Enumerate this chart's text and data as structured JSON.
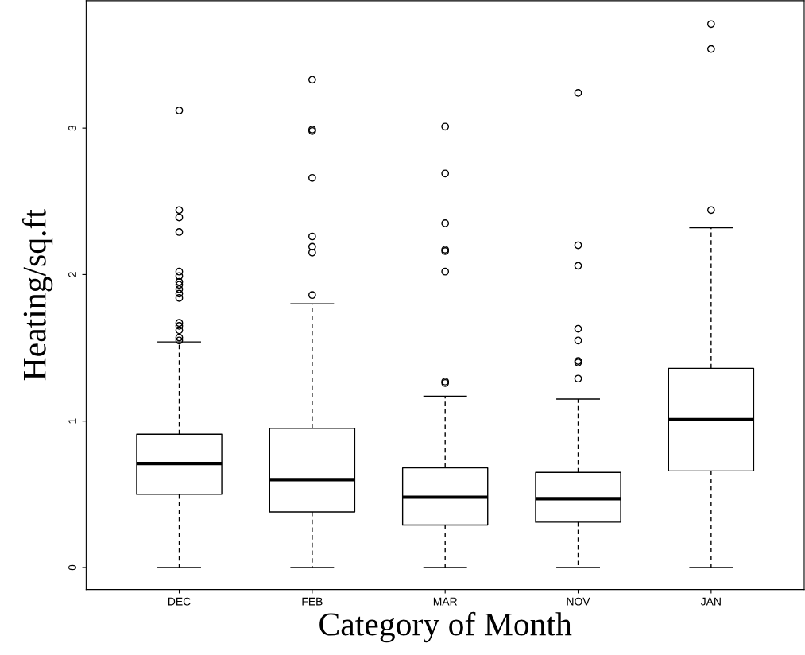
{
  "chart_data": {
    "type": "box",
    "xlabel": "Category of Month",
    "ylabel": "Heating/sq.ft",
    "categories": [
      "DEC",
      "FEB",
      "MAR",
      "NOV",
      "JAN"
    ],
    "ylim": [
      -0.15,
      3.87
    ],
    "yticks": [
      0,
      1,
      2,
      3
    ],
    "grid": false,
    "color": "#000000",
    "boxes": [
      {
        "low": 0,
        "q1": 0.5,
        "median": 0.71,
        "q3": 0.91,
        "high": 1.54,
        "outliers": [
          3.12,
          2.44,
          2.39,
          2.29,
          2.02,
          1.99,
          1.95,
          1.93,
          1.9,
          1.87,
          1.84,
          1.67,
          1.65,
          1.62,
          1.57,
          1.55
        ]
      },
      {
        "low": 0,
        "q1": 0.38,
        "median": 0.6,
        "q3": 0.95,
        "high": 1.8,
        "outliers": [
          3.33,
          2.99,
          2.98,
          2.66,
          2.26,
          2.19,
          2.15,
          1.86
        ]
      },
      {
        "low": 0,
        "q1": 0.29,
        "median": 0.48,
        "q3": 0.68,
        "high": 1.17,
        "outliers": [
          3.01,
          2.69,
          2.35,
          2.17,
          2.16,
          2.02,
          1.27,
          1.26
        ]
      },
      {
        "low": 0,
        "q1": 0.31,
        "median": 0.47,
        "q3": 0.65,
        "high": 1.15,
        "outliers": [
          3.24,
          2.2,
          2.06,
          1.63,
          1.55,
          1.41,
          1.4,
          1.29
        ]
      },
      {
        "low": 0,
        "q1": 0.66,
        "median": 1.01,
        "q3": 1.36,
        "high": 2.32,
        "outliers": [
          3.71,
          3.54,
          2.44
        ]
      }
    ]
  }
}
